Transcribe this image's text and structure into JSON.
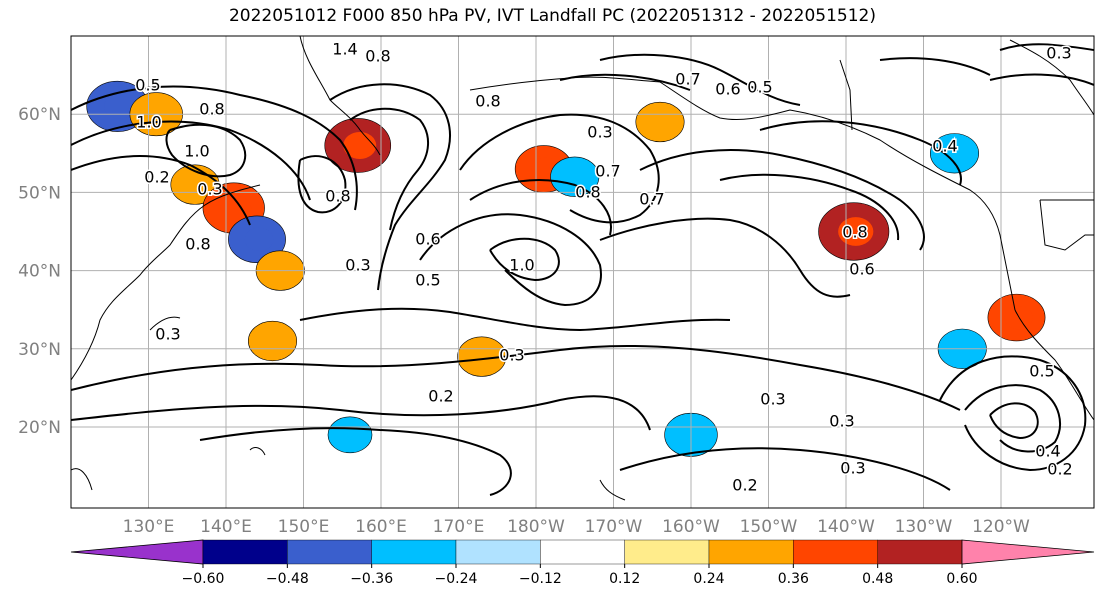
{
  "title": "2022051012 F000 850 hPa PV, IVT Landfall PC (2022051312 - 2022051512)",
  "axes": {
    "lat_labels": [
      "60°N",
      "50°N",
      "40°N",
      "30°N",
      "20°N"
    ],
    "lon_labels": [
      "130°E",
      "140°E",
      "150°E",
      "160°E",
      "170°E",
      "180°W",
      "170°W",
      "160°W",
      "150°W",
      "140°W",
      "130°W",
      "120°W"
    ],
    "label_color": "#808080"
  },
  "colorbar": {
    "colors": [
      "#9932cc",
      "#00008b",
      "#3a5fcd",
      "#00bfff",
      "#b0e2ff",
      "#ffffff",
      "#ffec8b",
      "#ffa500",
      "#ff4500",
      "#b22222",
      "#ff82ab"
    ],
    "tick_labels": [
      "−0.60",
      "−0.48",
      "−0.36",
      "−0.24",
      "−0.12",
      "0.12",
      "0.24",
      "0.36",
      "0.48",
      "0.60"
    ]
  },
  "contour_labels": [
    "1.4",
    "0.8",
    "0.5",
    "0.8",
    "0.8",
    "0.7",
    "0.6",
    "0.5",
    "1.0",
    "0.8",
    "0.2",
    "0.3",
    "0.6",
    "0.5",
    "0.3",
    "1.0",
    "0.8",
    "0.7",
    "0.8",
    "0.7",
    "0.4",
    "0.3",
    "0.2",
    "0.3",
    "0.3",
    "0.3",
    "0.2",
    "0.3",
    "0.3",
    "0.5",
    "0.4",
    "0.2",
    "0.6",
    "0.8",
    "1.0",
    "0.3"
  ],
  "shading": [
    {
      "value": -0.45,
      "lon": 126,
      "lat": 61
    },
    {
      "value": 0.35,
      "lon": 131,
      "lat": 60
    },
    {
      "value": 0.3,
      "lon": 136,
      "lat": 51
    },
    {
      "value": 0.45,
      "lon": 141,
      "lat": 48
    },
    {
      "value": -0.4,
      "lon": 144,
      "lat": 44
    },
    {
      "value": 0.3,
      "lon": 147,
      "lat": 40
    },
    {
      "value": 0.5,
      "lon": 157,
      "lat": 56
    },
    {
      "value": 0.4,
      "lon": 181,
      "lat": 53
    },
    {
      "value": -0.3,
      "lon": 185,
      "lat": 52
    },
    {
      "value": 0.55,
      "lon": 221,
      "lat": 45
    },
    {
      "value": -0.35,
      "lon": 200,
      "lat": 19
    },
    {
      "value": 0.3,
      "lon": 146,
      "lat": 31
    },
    {
      "value": -0.25,
      "lon": 156,
      "lat": 19
    },
    {
      "value": 0.3,
      "lon": 196,
      "lat": 59
    },
    {
      "value": -0.3,
      "lon": 234,
      "lat": 55
    },
    {
      "value": 0.4,
      "lon": 242,
      "lat": 34
    },
    {
      "value": -0.3,
      "lon": 235,
      "lat": 30
    },
    {
      "value": 0.3,
      "lon": 173,
      "lat": 29
    }
  ]
}
